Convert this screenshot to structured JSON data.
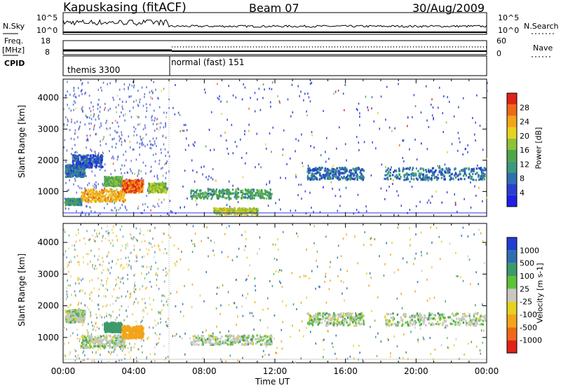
{
  "header": {
    "station": "Kapuskasing (fitACF)",
    "beam": "Beam 07",
    "date": "30/Aug/2009"
  },
  "top_panels": {
    "nsky_label": "N.Sky",
    "nsky_ticks": [
      "10^5",
      "10^0"
    ],
    "nsearch_label": "N.Search",
    "nsearch_ticks": [
      "10^5",
      "10^0"
    ],
    "freq_label": "Freq.",
    "freq_unit": "[MHz]",
    "freq_ticks": [
      "18",
      "8"
    ],
    "nave_label": "Nave",
    "nave_ticks": [
      "60",
      "0"
    ],
    "cpid_label": "CPID",
    "cpid_segments": [
      {
        "label": "themis 3300",
        "start_hour": 0,
        "end_hour": 6
      },
      {
        "label": "normal (fast) 151",
        "start_hour": 6,
        "end_hour": 24
      }
    ]
  },
  "chart_data": [
    {
      "type": "heatmap",
      "title": "",
      "ylabel": "Slant Range [km]",
      "xlabel": "",
      "xlim": [
        0,
        24
      ],
      "ylim": [
        200,
        4600
      ],
      "yticks": [
        "1000",
        "2000",
        "3000",
        "4000"
      ],
      "colorbar": {
        "label": "Power [dB]",
        "ticks": [
          "4",
          "8",
          "12",
          "16",
          "20",
          "24",
          "28"
        ],
        "range": [
          0,
          30
        ],
        "colors": [
          "#1f1fe6",
          "#2a3fd0",
          "#2f6fb0",
          "#3d9a7a",
          "#4fa64a",
          "#8fc23a",
          "#e6d21f",
          "#f2a51a",
          "#ee6a16",
          "#e02318"
        ]
      },
      "echo_regions": [
        {
          "x": [
            0.1,
            1.2
          ],
          "y": [
            1500,
            1900
          ],
          "value": 8
        },
        {
          "x": [
            0.5,
            2.2
          ],
          "y": [
            1800,
            2200
          ],
          "value": 6
        },
        {
          "x": [
            0.1,
            1.0
          ],
          "y": [
            600,
            800
          ],
          "value": 10
        },
        {
          "x": [
            1.0,
            3.5
          ],
          "y": [
            700,
            1100
          ],
          "value": 22
        },
        {
          "x": [
            2.3,
            3.3
          ],
          "y": [
            1200,
            1500
          ],
          "value": 14
        },
        {
          "x": [
            3.3,
            4.5
          ],
          "y": [
            1000,
            1400
          ],
          "value": 26
        },
        {
          "x": [
            4.8,
            5.8
          ],
          "y": [
            1000,
            1300
          ],
          "value": 16
        },
        {
          "x": [
            7.2,
            11.8
          ],
          "y": [
            800,
            1100
          ],
          "value": 12
        },
        {
          "x": [
            8.5,
            11.0
          ],
          "y": [
            300,
            500
          ],
          "value": 18
        },
        {
          "x": [
            13.8,
            17.0
          ],
          "y": [
            1400,
            1800
          ],
          "value": 8
        },
        {
          "x": [
            18.2,
            23.9
          ],
          "y": [
            1400,
            1800
          ],
          "value": 8
        }
      ]
    },
    {
      "type": "heatmap",
      "title": "",
      "ylabel": "Slant Range [km]",
      "xlabel": "Time UT",
      "xlim": [
        0,
        24
      ],
      "ylim": [
        200,
        4600
      ],
      "yticks": [
        "1000",
        "2000",
        "3000",
        "4000"
      ],
      "xticks": [
        "00:00",
        "04:00",
        "08:00",
        "12:00",
        "16:00",
        "20:00",
        "00:00"
      ],
      "colorbar": {
        "label": "Velocity [m s-1]",
        "ticks": [
          "1000",
          "500",
          "100",
          "25",
          "-25",
          "-100",
          "-500",
          "-1000"
        ],
        "colors": [
          "#1f3fd2",
          "#2f6fb0",
          "#3d9a6a",
          "#5fc23a",
          "#c8c8c0",
          "#e6d21f",
          "#f2a51a",
          "#ee6a16",
          "#e02318"
        ]
      },
      "echo_regions": [
        {
          "x": [
            0.1,
            1.2
          ],
          "y": [
            1500,
            1900
          ],
          "value": 0
        },
        {
          "x": [
            1.0,
            3.5
          ],
          "y": [
            700,
            1100
          ],
          "value": 0
        },
        {
          "x": [
            2.3,
            3.3
          ],
          "y": [
            1200,
            1500
          ],
          "value": 60
        },
        {
          "x": [
            3.3,
            4.5
          ],
          "y": [
            1000,
            1400
          ],
          "value": -150
        },
        {
          "x": [
            7.2,
            11.8
          ],
          "y": [
            800,
            1100
          ],
          "value": 0
        },
        {
          "x": [
            13.8,
            17.0
          ],
          "y": [
            1400,
            1800
          ],
          "value": 0
        },
        {
          "x": [
            18.2,
            23.9
          ],
          "y": [
            1400,
            1800
          ],
          "value": 0
        }
      ]
    }
  ],
  "colors": {
    "axis": "#000000",
    "background": "#ffffff"
  }
}
